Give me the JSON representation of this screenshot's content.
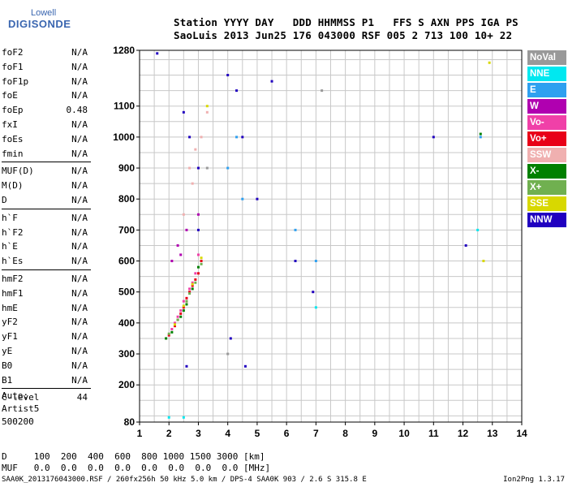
{
  "logo": {
    "line1": "Lowell",
    "line2": "DIGISONDE"
  },
  "header": {
    "line1": "Station YYYY DAY   DDD HHMMSS P1   FFS S AXN PPS IGA PS",
    "line2": "SaoLuis 2013 Jun25 176 043000 RSF 005 2 713 100 10+ 22"
  },
  "params": [
    {
      "group": [
        {
          "name": "foF2",
          "value": "N/A"
        },
        {
          "name": "foF1",
          "value": "N/A"
        },
        {
          "name": "foF1p",
          "value": "N/A"
        },
        {
          "name": "foE",
          "value": "N/A"
        },
        {
          "name": "foEp",
          "value": "0.48"
        },
        {
          "name": "fxI",
          "value": "N/A"
        },
        {
          "name": "foEs",
          "value": "N/A"
        },
        {
          "name": "fmin",
          "value": "N/A"
        }
      ]
    },
    {
      "group": [
        {
          "name": "MUF(D)",
          "value": "N/A"
        },
        {
          "name": "M(D)",
          "value": "N/A"
        },
        {
          "name": "D",
          "value": "N/A"
        }
      ]
    },
    {
      "group": [
        {
          "name": "h`F",
          "value": "N/A"
        },
        {
          "name": "h`F2",
          "value": "N/A"
        },
        {
          "name": "h`E",
          "value": "N/A"
        },
        {
          "name": "h`Es",
          "value": "N/A"
        }
      ]
    },
    {
      "group": [
        {
          "name": "hmF2",
          "value": "N/A"
        },
        {
          "name": "hmF1",
          "value": "N/A"
        },
        {
          "name": "hmE",
          "value": "N/A"
        },
        {
          "name": "yF2",
          "value": "N/A"
        },
        {
          "name": "yF1",
          "value": "N/A"
        },
        {
          "name": "yE",
          "value": "N/A"
        },
        {
          "name": "B0",
          "value": "N/A"
        },
        {
          "name": "B1",
          "value": "N/A"
        }
      ]
    },
    {
      "group": [
        {
          "name": "C-level",
          "value": "44"
        }
      ]
    }
  ],
  "auto": {
    "line1": "Auto:",
    "line2": "Artist5",
    "line3": "500200"
  },
  "legend": [
    {
      "label": "NoVal",
      "color": "#999999"
    },
    {
      "label": "NNE",
      "color": "#00e8f0"
    },
    {
      "label": "E",
      "color": "#2ea0f0"
    },
    {
      "label": "W",
      "color": "#b000b0"
    },
    {
      "label": "Vo-",
      "color": "#f040a8"
    },
    {
      "label": "Vo+",
      "color": "#e80018"
    },
    {
      "label": "SSW",
      "color": "#f0b0b0"
    },
    {
      "label": "X-",
      "color": "#008000"
    },
    {
      "label": "X+",
      "color": "#70b050"
    },
    {
      "label": "SSE",
      "color": "#d8d800"
    },
    {
      "label": "NNW",
      "color": "#2000c0"
    }
  ],
  "bottom": {
    "d_line": "D     100  200  400  600  800 1000 1500 3000 [km]",
    "muf_line": "MUF   0.0  0.0  0.0  0.0  0.0  0.0  0.0  0.0 [MHz]"
  },
  "footer": {
    "left": "SAA0K_2013176043000.RSF / 260fx256h 50 kHz 5.0 km / DPS-4 SAA0K 903 / 2.6 S 315.8 E",
    "right": "Ion2Png 1.3.17"
  },
  "chart_data": {
    "type": "scatter",
    "title": "",
    "xlabel": "",
    "ylabel": "",
    "x_ticks": [
      1,
      2,
      3,
      4,
      5,
      6,
      7,
      8,
      9,
      10,
      11,
      12,
      13,
      14
    ],
    "y_ticks": [
      80,
      200,
      300,
      400,
      500,
      600,
      700,
      800,
      900,
      1000,
      1100,
      1280
    ],
    "xlim": [
      1,
      14
    ],
    "ylim": [
      80,
      1280
    ],
    "series": [
      {
        "name": "Vo+",
        "color": "#e80018",
        "points": [
          [
            2.0,
            360
          ],
          [
            2.2,
            390
          ],
          [
            2.4,
            430
          ],
          [
            2.6,
            470
          ],
          [
            2.8,
            520
          ],
          [
            3.0,
            560
          ],
          [
            2.5,
            450
          ],
          [
            2.7,
            500
          ],
          [
            2.9,
            540
          ],
          [
            3.1,
            600
          ],
          [
            2.3,
            410
          ],
          [
            2.6,
            480
          ]
        ]
      },
      {
        "name": "Vo-",
        "color": "#f040a8",
        "points": [
          [
            2.1,
            380
          ],
          [
            2.3,
            420
          ],
          [
            2.5,
            470
          ],
          [
            2.7,
            510
          ],
          [
            2.9,
            560
          ],
          [
            3.0,
            620
          ],
          [
            2.4,
            440
          ],
          [
            2.8,
            530
          ],
          [
            2.2,
            400
          ]
        ]
      },
      {
        "name": "X-",
        "color": "#008000",
        "points": [
          [
            1.9,
            350
          ],
          [
            2.1,
            370
          ],
          [
            2.4,
            420
          ],
          [
            2.6,
            460
          ],
          [
            2.8,
            510
          ],
          [
            3.0,
            580
          ],
          [
            12.6,
            1010
          ],
          [
            2.5,
            440
          ]
        ]
      },
      {
        "name": "X+",
        "color": "#70b050",
        "points": [
          [
            2.0,
            365
          ],
          [
            2.3,
            410
          ],
          [
            2.6,
            470
          ],
          [
            2.9,
            530
          ],
          [
            3.1,
            590
          ],
          [
            2.7,
            495
          ]
        ]
      },
      {
        "name": "SSE",
        "color": "#d8d800",
        "points": [
          [
            2.2,
            395
          ],
          [
            2.5,
            455
          ],
          [
            2.8,
            525
          ],
          [
            3.1,
            610
          ],
          [
            3.3,
            1100
          ],
          [
            12.7,
            600
          ],
          [
            12.9,
            1240
          ]
        ]
      },
      {
        "name": "SSW",
        "color": "#f0b0b0",
        "points": [
          [
            2.7,
            900
          ],
          [
            2.9,
            960
          ],
          [
            3.1,
            1000
          ],
          [
            3.3,
            1080
          ],
          [
            2.5,
            750
          ],
          [
            2.8,
            850
          ]
        ]
      },
      {
        "name": "W",
        "color": "#b000b0",
        "points": [
          [
            2.1,
            600
          ],
          [
            2.3,
            650
          ],
          [
            2.6,
            700
          ],
          [
            3.0,
            750
          ],
          [
            2.4,
            620
          ]
        ]
      },
      {
        "name": "E",
        "color": "#2ea0f0",
        "points": [
          [
            4.0,
            900
          ],
          [
            4.5,
            800
          ],
          [
            6.3,
            700
          ],
          [
            7.0,
            600
          ],
          [
            12.6,
            1000
          ],
          [
            4.3,
            1000
          ]
        ]
      },
      {
        "name": "NNE",
        "color": "#00e8f0",
        "points": [
          [
            2.0,
            95
          ],
          [
            2.5,
            95
          ],
          [
            7.0,
            450
          ],
          [
            12.5,
            700
          ]
        ]
      },
      {
        "name": "NNW",
        "color": "#2000c0",
        "points": [
          [
            1.6,
            1270
          ],
          [
            2.5,
            1080
          ],
          [
            2.7,
            1000
          ],
          [
            3.0,
            900
          ],
          [
            4.0,
            1200
          ],
          [
            4.3,
            1150
          ],
          [
            4.5,
            1000
          ],
          [
            5.0,
            800
          ],
          [
            6.3,
            600
          ],
          [
            6.9,
            500
          ],
          [
            4.1,
            350
          ],
          [
            4.6,
            260
          ],
          [
            2.6,
            260
          ],
          [
            5.5,
            1180
          ],
          [
            11.0,
            1000
          ],
          [
            12.1,
            650
          ],
          [
            3.0,
            700
          ]
        ]
      },
      {
        "name": "NoVal",
        "color": "#999999",
        "points": [
          [
            3.3,
            900
          ],
          [
            4.0,
            300
          ],
          [
            7.2,
            1150
          ]
        ]
      }
    ]
  }
}
